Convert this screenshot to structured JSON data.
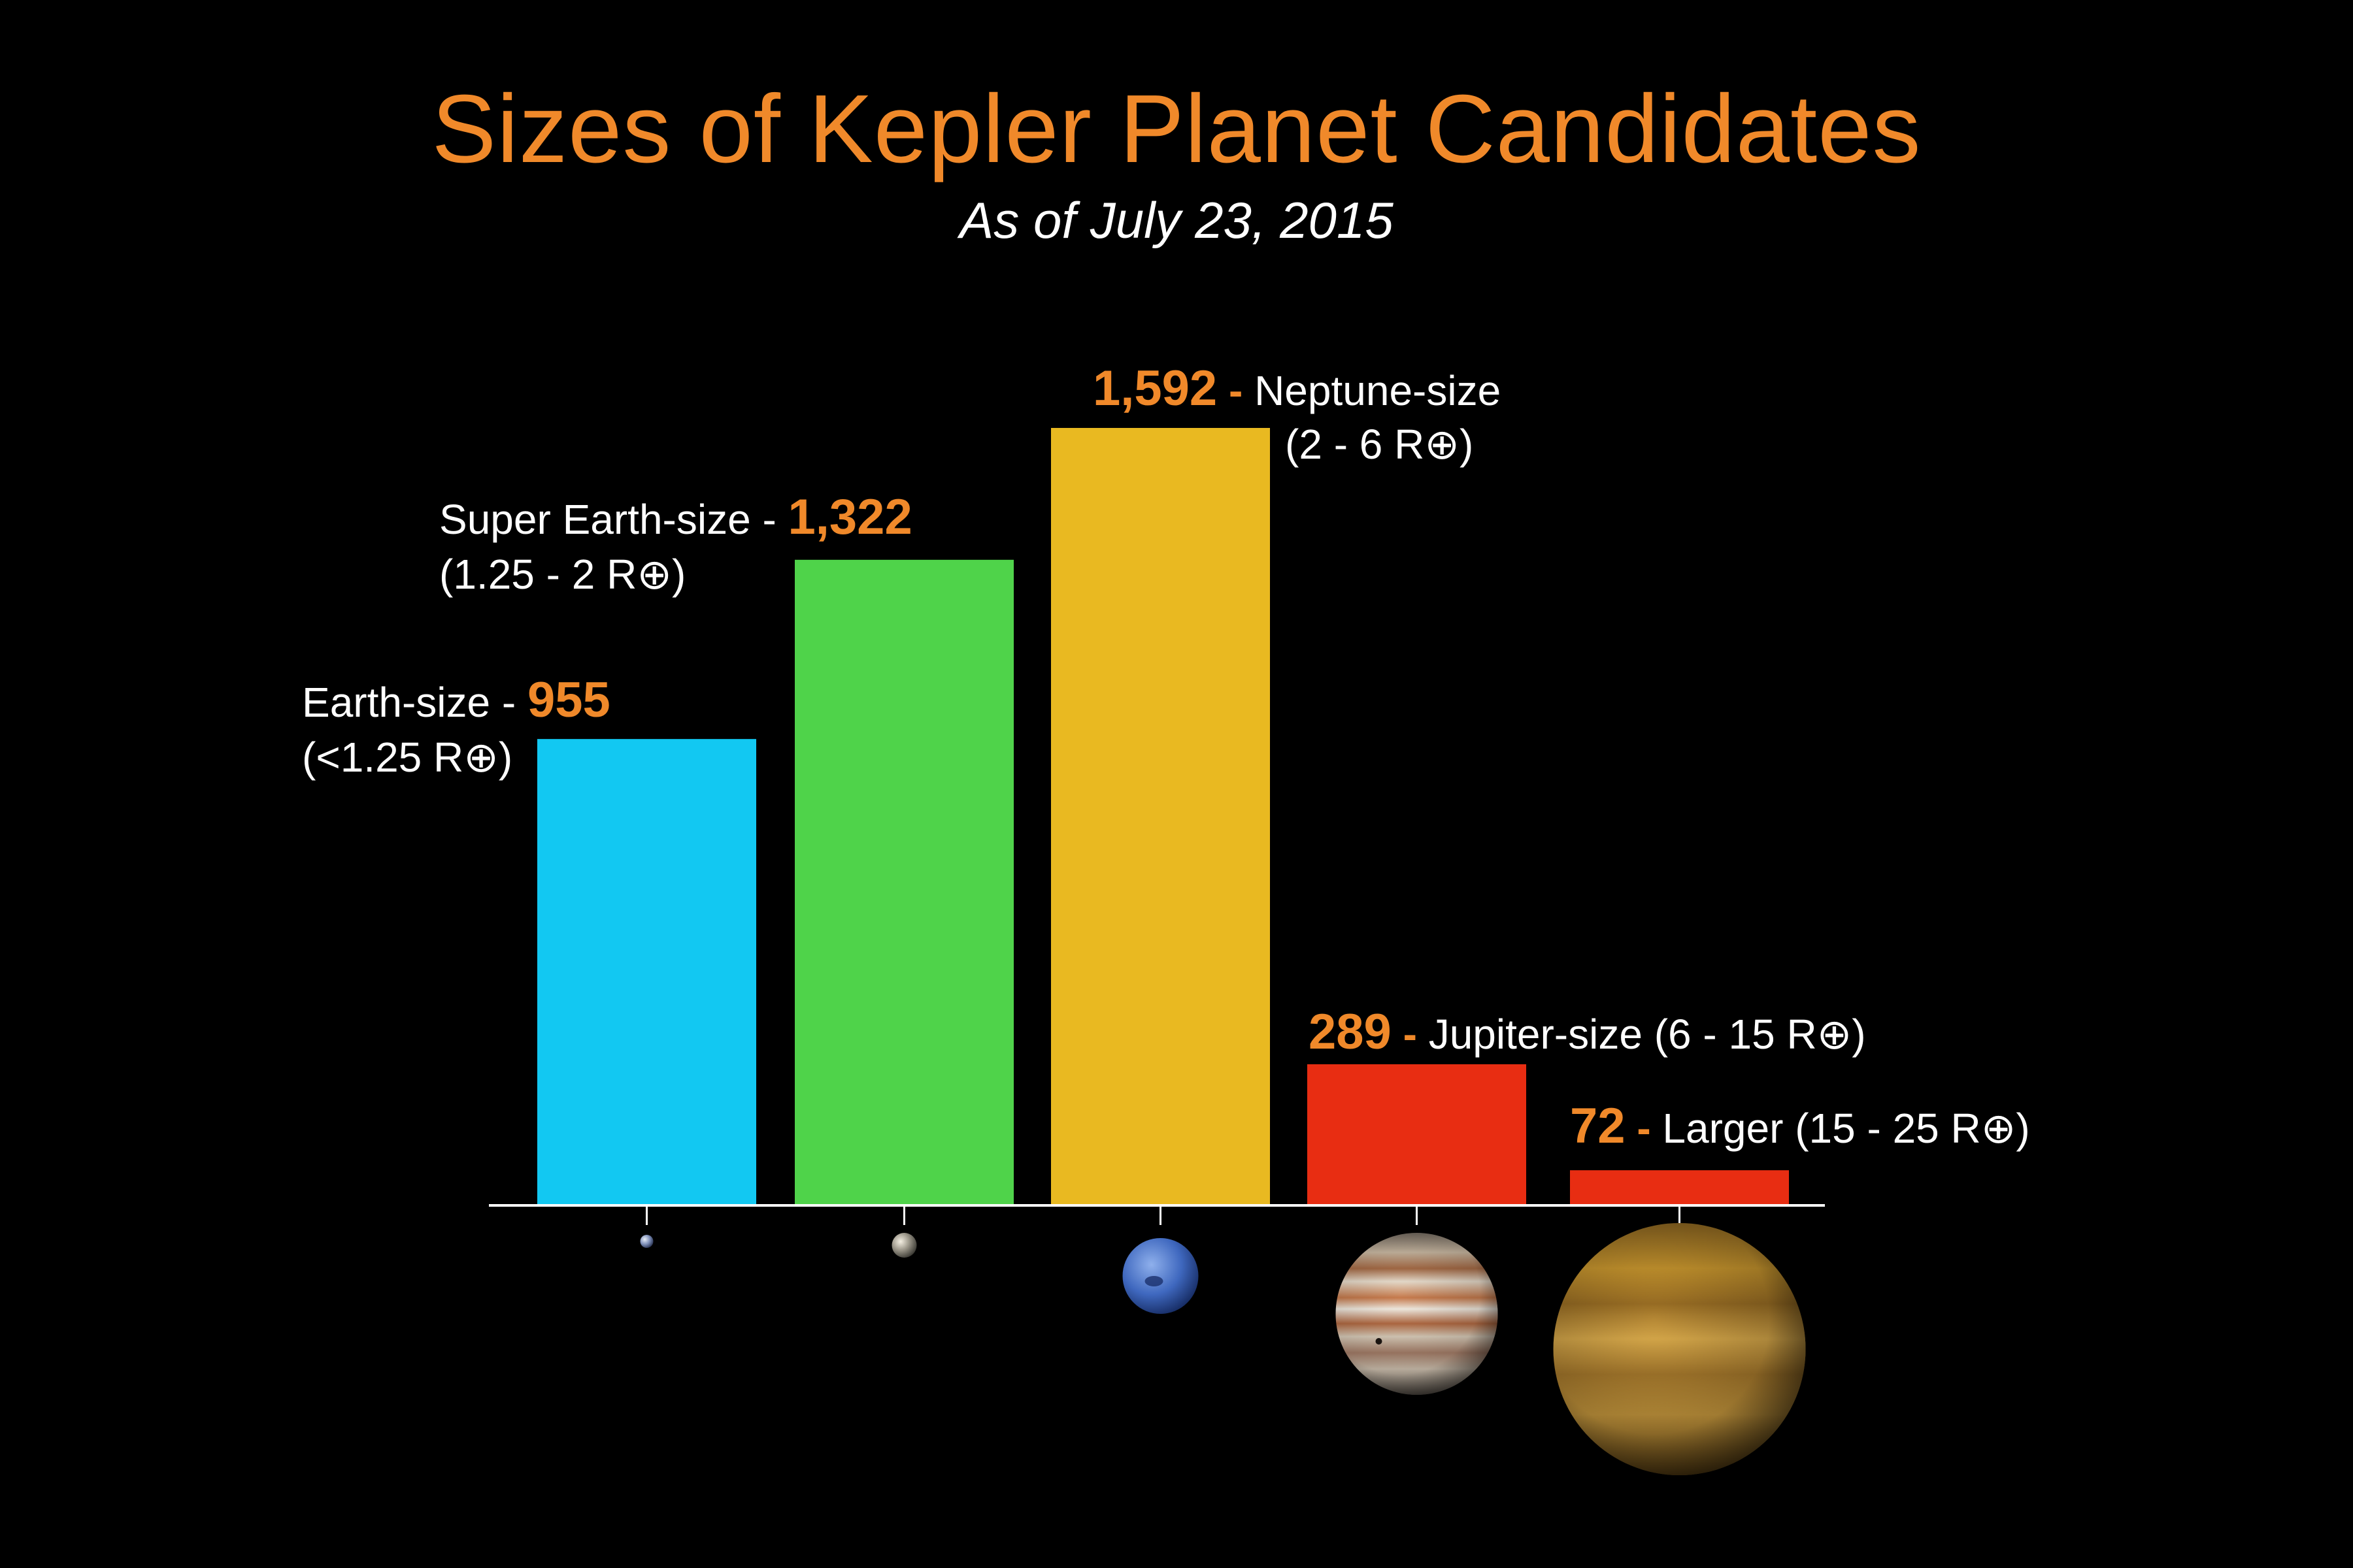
{
  "chart_data": {
    "type": "bar",
    "title": "Sizes of Kepler Planet Candidates",
    "subtitle": "As of July 23, 2015",
    "xlabel": "",
    "ylabel": "",
    "ylim": [
      0,
      1700
    ],
    "grid": false,
    "legend": "none",
    "unit_symbol": "R⊕",
    "categories": [
      "Earth-size",
      "Super Earth-size",
      "Neptune-size",
      "Jupiter-size",
      "Larger"
    ],
    "values": [
      955,
      1322,
      1592,
      289,
      72
    ],
    "data_labels": [
      "955",
      "1,322",
      "1,592",
      "289",
      "72"
    ],
    "ranges": [
      "(<1.25 R⊕)",
      "(1.25 - 2 R⊕)",
      "(2 - 6 R⊕)",
      "(6 - 15 R⊕)",
      "(15 - 25 R⊕)"
    ],
    "colors": [
      "#12c8f2",
      "#4fd34a",
      "#e9b921",
      "#e82d12",
      "#e82d12"
    ],
    "planet_icons": [
      "earth-icon",
      "super-earth-icon",
      "neptune-icon",
      "jupiter-icon",
      "gas-giant-icon"
    ]
  }
}
